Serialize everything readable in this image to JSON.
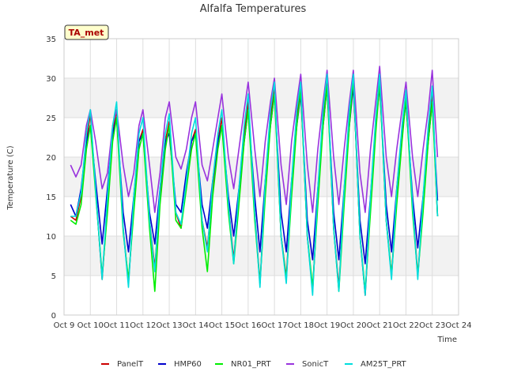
{
  "chart_data": {
    "type": "line",
    "title": "Alfalfa Temperatures",
    "badge": "TA_met",
    "xlabel": "Time",
    "ylabel": "Temperature (C)",
    "xlim": [
      9,
      24
    ],
    "ylim": [
      0,
      35
    ],
    "x_ticks": [
      {
        "value": 9,
        "label": "Oct 9"
      },
      {
        "value": 10,
        "label": "Oct 10"
      },
      {
        "value": 11,
        "label": "Oct 11"
      },
      {
        "value": 12,
        "label": "Oct 12"
      },
      {
        "value": 13,
        "label": "Oct 13"
      },
      {
        "value": 14,
        "label": "Oct 14"
      },
      {
        "value": 15,
        "label": "Oct 15"
      },
      {
        "value": 16,
        "label": "Oct 16"
      },
      {
        "value": 17,
        "label": "Oct 17"
      },
      {
        "value": 18,
        "label": "Oct 18"
      },
      {
        "value": 19,
        "label": "Oct 19"
      },
      {
        "value": 20,
        "label": "Oct 20"
      },
      {
        "value": 21,
        "label": "Oct 21"
      },
      {
        "value": 22,
        "label": "Oct 22"
      },
      {
        "value": 23,
        "label": "Oct 23"
      },
      {
        "value": 24,
        "label": "Oct 24"
      }
    ],
    "y_ticks": [
      0,
      5,
      10,
      15,
      20,
      25,
      30,
      35
    ],
    "grid": true,
    "legend_position": "bottom",
    "series": [
      {
        "name": "PanelT",
        "color": "#cc0000",
        "x": [
          9.25,
          9.45,
          9.65,
          9.85,
          10.0,
          10.2,
          10.45,
          10.65,
          10.85,
          11.0,
          11.25,
          11.45,
          11.65,
          11.85,
          12.0,
          12.25,
          12.45,
          12.65,
          12.85,
          13.0,
          13.25,
          13.45,
          13.65,
          13.85,
          14.0,
          14.25,
          14.45,
          14.65,
          14.85,
          15.0,
          15.25,
          15.45,
          15.65,
          15.85,
          16.0,
          16.25,
          16.45,
          16.65,
          16.85,
          17.0,
          17.25,
          17.45,
          17.65,
          17.85,
          18.0,
          18.25,
          18.45,
          18.65,
          18.85,
          19.0,
          19.25,
          19.45,
          19.65,
          19.85,
          20.0,
          20.25,
          20.45,
          20.65,
          20.85,
          21.0,
          21.25,
          21.45,
          21.65,
          21.85,
          22.0,
          22.25,
          22.45,
          22.65,
          22.85,
          23.0,
          23.2
        ],
        "y": [
          12.5,
          12.0,
          15.0,
          22.0,
          25.5,
          16.0,
          4.5,
          14.0,
          23.0,
          26.0,
          11.0,
          4.0,
          14.0,
          22.0,
          23.5,
          12.0,
          6.0,
          15.0,
          22.0,
          24.5,
          13.0,
          11.0,
          17.0,
          22.0,
          23.5,
          12.0,
          8.5,
          16.0,
          22.0,
          25.0,
          14.0,
          7.0,
          15.0,
          23.0,
          27.0,
          13.0,
          4.0,
          16.0,
          25.0,
          29.0,
          10.0,
          4.8,
          16.0,
          25.0,
          29.0,
          10.0,
          3.0,
          15.0,
          25.0,
          30.0,
          11.0,
          3.5,
          15.0,
          25.0,
          30.0,
          10.0,
          2.5,
          14.0,
          24.0,
          30.0,
          12.0,
          5.0,
          15.0,
          23.0,
          28.0,
          14.0,
          5.0,
          14.0,
          23.0,
          28.0,
          12.5
        ]
      },
      {
        "name": "HMP60",
        "color": "#0000cc",
        "x": [
          9.25,
          9.45,
          9.65,
          9.85,
          10.0,
          10.2,
          10.45,
          10.65,
          10.85,
          11.0,
          11.25,
          11.45,
          11.65,
          11.85,
          12.0,
          12.25,
          12.45,
          12.65,
          12.85,
          13.0,
          13.25,
          13.45,
          13.65,
          13.85,
          14.0,
          14.25,
          14.45,
          14.65,
          14.85,
          15.0,
          15.25,
          15.45,
          15.65,
          15.85,
          16.0,
          16.25,
          16.45,
          16.65,
          16.85,
          17.0,
          17.25,
          17.45,
          17.65,
          17.85,
          18.0,
          18.25,
          18.45,
          18.65,
          18.85,
          19.0,
          19.25,
          19.45,
          19.65,
          19.85,
          20.0,
          20.25,
          20.45,
          20.65,
          20.85,
          21.0,
          21.25,
          21.45,
          21.65,
          21.85,
          22.0,
          22.25,
          22.45,
          22.65,
          22.85,
          23.0,
          23.2
        ],
        "y": [
          14.0,
          12.5,
          16.0,
          22.0,
          24.0,
          17.0,
          9.0,
          16.0,
          23.0,
          25.0,
          13.0,
          8.0,
          15.0,
          22.0,
          23.0,
          13.0,
          9.0,
          16.0,
          22.0,
          23.0,
          14.0,
          13.0,
          18.0,
          22.0,
          23.0,
          14.0,
          11.0,
          17.0,
          22.0,
          24.0,
          15.0,
          10.0,
          16.0,
          22.0,
          26.0,
          15.0,
          8.0,
          17.0,
          24.0,
          28.0,
          13.0,
          8.0,
          17.0,
          24.0,
          28.0,
          12.0,
          7.0,
          16.0,
          24.0,
          29.0,
          13.0,
          7.0,
          16.0,
          24.0,
          29.0,
          12.0,
          6.5,
          15.0,
          24.0,
          29.0,
          14.0,
          8.0,
          16.0,
          23.0,
          27.0,
          15.0,
          8.5,
          15.0,
          22.0,
          27.0,
          14.5
        ]
      },
      {
        "name": "NR01_PRT",
        "color": "#00ee00",
        "x": [
          9.25,
          9.45,
          9.65,
          9.85,
          10.0,
          10.2,
          10.45,
          10.65,
          10.85,
          11.0,
          11.25,
          11.45,
          11.65,
          11.85,
          12.0,
          12.25,
          12.45,
          12.65,
          12.85,
          13.0,
          13.25,
          13.45,
          13.65,
          13.85,
          14.0,
          14.25,
          14.45,
          14.65,
          14.85,
          15.0,
          15.25,
          15.45,
          15.65,
          15.85,
          16.0,
          16.25,
          16.45,
          16.65,
          16.85,
          17.0,
          17.25,
          17.45,
          17.65,
          17.85,
          18.0,
          18.25,
          18.45,
          18.65,
          18.85,
          19.0,
          19.25,
          19.45,
          19.65,
          19.85,
          20.0,
          20.25,
          20.45,
          20.65,
          20.85,
          21.0,
          21.25,
          21.45,
          21.65,
          21.85,
          22.0,
          22.25,
          22.45,
          22.65,
          22.85,
          23.0,
          23.2
        ],
        "y": [
          12.0,
          11.5,
          14.0,
          21.0,
          24.0,
          15.5,
          5.0,
          13.0,
          22.0,
          25.0,
          10.5,
          4.5,
          13.0,
          21.0,
          23.0,
          11.0,
          3.0,
          14.0,
          21.0,
          24.0,
          12.0,
          11.0,
          16.0,
          21.0,
          23.0,
          11.0,
          5.5,
          15.0,
          21.0,
          24.0,
          13.0,
          6.5,
          14.0,
          22.0,
          26.0,
          12.0,
          4.0,
          15.0,
          24.0,
          28.0,
          10.0,
          4.5,
          15.0,
          24.0,
          28.5,
          10.0,
          3.5,
          14.0,
          24.0,
          29.0,
          11.0,
          3.0,
          14.0,
          24.0,
          30.0,
          10.0,
          3.0,
          13.0,
          23.0,
          29.5,
          12.0,
          5.0,
          14.0,
          22.0,
          27.5,
          13.0,
          5.0,
          13.0,
          22.0,
          27.0,
          12.5
        ]
      },
      {
        "name": "SonicT",
        "color": "#9933dd",
        "x": [
          9.25,
          9.45,
          9.65,
          9.85,
          10.0,
          10.2,
          10.45,
          10.65,
          10.85,
          11.0,
          11.25,
          11.45,
          11.65,
          11.85,
          12.0,
          12.25,
          12.45,
          12.65,
          12.85,
          13.0,
          13.25,
          13.45,
          13.65,
          13.85,
          14.0,
          14.25,
          14.45,
          14.65,
          14.85,
          15.0,
          15.25,
          15.45,
          15.65,
          15.85,
          16.0,
          16.25,
          16.45,
          16.65,
          16.85,
          17.0,
          17.25,
          17.45,
          17.65,
          17.85,
          18.0,
          18.25,
          18.45,
          18.65,
          18.85,
          19.0,
          19.25,
          19.45,
          19.65,
          19.85,
          20.0,
          20.25,
          20.45,
          20.65,
          20.85,
          21.0,
          21.25,
          21.45,
          21.65,
          21.85,
          22.0,
          22.25,
          22.45,
          22.65,
          22.85,
          23.0,
          23.2
        ],
        "y": [
          19.0,
          17.5,
          19.0,
          24.0,
          26.0,
          22.0,
          16.0,
          18.0,
          24.0,
          26.0,
          19.0,
          15.0,
          18.0,
          24.0,
          26.0,
          19.0,
          13.0,
          18.0,
          25.0,
          27.0,
          20.0,
          18.5,
          21.0,
          25.0,
          27.0,
          19.0,
          17.0,
          21.0,
          25.0,
          28.0,
          20.0,
          16.0,
          21.0,
          26.0,
          29.5,
          21.0,
          15.0,
          22.0,
          27.0,
          30.0,
          19.0,
          14.0,
          22.0,
          27.0,
          30.5,
          19.0,
          13.0,
          21.0,
          27.0,
          31.0,
          20.0,
          14.0,
          21.0,
          27.0,
          31.0,
          18.0,
          13.0,
          21.0,
          27.0,
          31.5,
          20.0,
          15.0,
          21.0,
          26.0,
          29.5,
          20.0,
          15.0,
          21.0,
          26.0,
          31.0,
          20.0
        ]
      },
      {
        "name": "AM25T_PRT",
        "color": "#00dddd",
        "x": [
          9.25,
          9.45,
          9.65,
          9.85,
          10.0,
          10.2,
          10.45,
          10.65,
          10.85,
          11.0,
          11.25,
          11.45,
          11.65,
          11.85,
          12.0,
          12.25,
          12.45,
          12.65,
          12.85,
          13.0,
          13.25,
          13.45,
          13.65,
          13.85,
          14.0,
          14.25,
          14.45,
          14.65,
          14.85,
          15.0,
          15.25,
          15.45,
          15.65,
          15.85,
          16.0,
          16.25,
          16.45,
          16.65,
          16.85,
          17.0,
          17.25,
          17.45,
          17.65,
          17.85,
          18.0,
          18.25,
          18.45,
          18.65,
          18.85,
          19.0,
          19.25,
          19.45,
          19.65,
          19.85,
          20.0,
          20.25,
          20.45,
          20.65,
          20.85,
          21.0,
          21.25,
          21.45,
          21.65,
          21.85,
          22.0,
          22.25,
          22.45,
          22.65,
          22.85,
          23.0,
          23.2
        ],
        "y": [
          12.5,
          12.5,
          15.5,
          23.0,
          26.0,
          16.0,
          4.5,
          15.0,
          24.0,
          27.0,
          11.0,
          3.5,
          15.0,
          23.0,
          25.0,
          12.0,
          5.5,
          16.0,
          23.0,
          25.5,
          13.0,
          11.5,
          17.0,
          23.0,
          25.0,
          12.0,
          8.0,
          17.0,
          23.0,
          26.0,
          14.0,
          6.5,
          16.0,
          24.0,
          28.0,
          13.0,
          3.5,
          17.0,
          26.0,
          29.5,
          10.0,
          4.0,
          17.0,
          26.0,
          29.5,
          10.0,
          2.5,
          16.0,
          26.0,
          30.5,
          11.0,
          3.0,
          16.0,
          26.0,
          30.5,
          10.0,
          2.5,
          15.0,
          25.0,
          30.5,
          12.0,
          4.5,
          16.0,
          24.0,
          28.5,
          14.0,
          4.5,
          15.0,
          24.0,
          29.0,
          12.5
        ]
      }
    ]
  }
}
